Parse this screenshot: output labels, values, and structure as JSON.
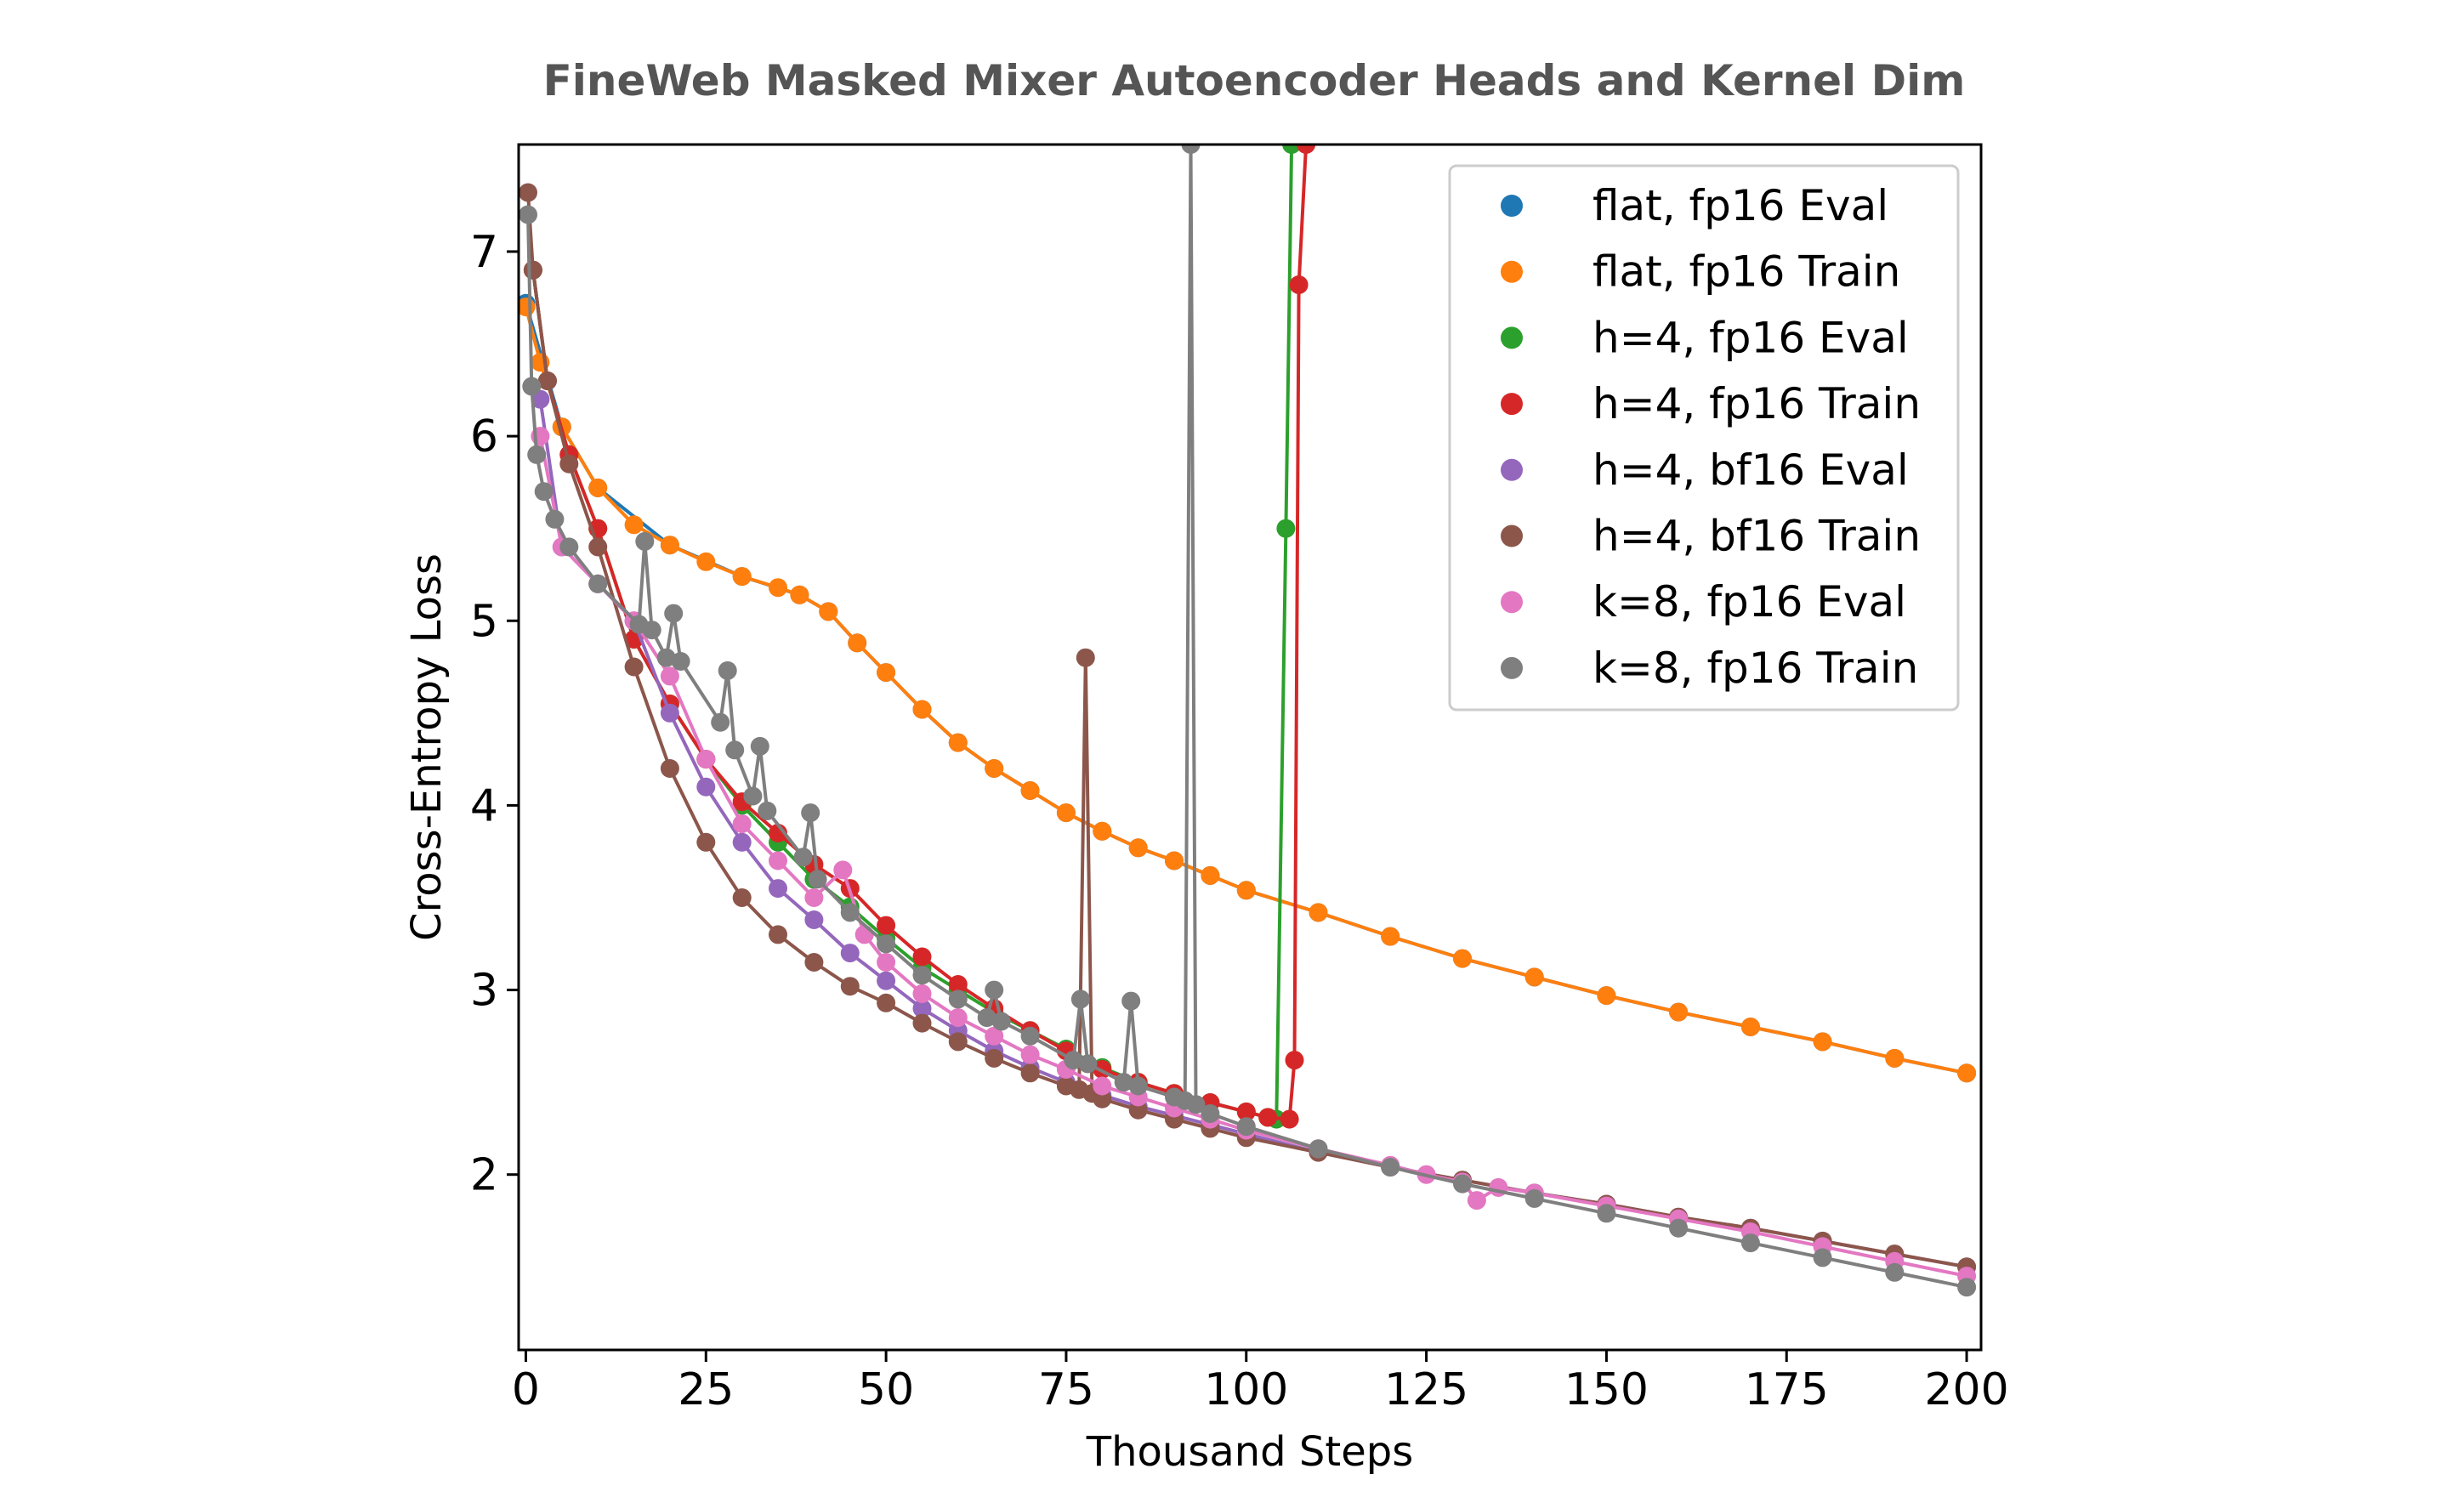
{
  "chart_data": {
    "type": "line",
    "title": "FineWeb Masked Mixer Autoencoder Heads and Kernel Dim",
    "xlabel": "Thousand Steps",
    "ylabel": "Cross-Entropy Loss",
    "xlim": [
      -1,
      202
    ],
    "ylim": [
      1.05,
      7.58
    ],
    "xticks": [
      0,
      25,
      50,
      75,
      100,
      125,
      150,
      175,
      200
    ],
    "yticks": [
      2,
      3,
      4,
      5,
      6,
      7
    ],
    "grid": false,
    "legend_position": "top-right",
    "series": [
      {
        "name": "flat, fp16 Eval",
        "color": "#1f77b4",
        "x": [
          0,
          5,
          10,
          20,
          30,
          38,
          42,
          46,
          50,
          55,
          60,
          65,
          70,
          75,
          80,
          85,
          90,
          95,
          100,
          110,
          120,
          130,
          140,
          150,
          160,
          170,
          180,
          190,
          200
        ],
        "y": [
          6.72,
          6.05,
          5.72,
          5.41,
          5.24,
          5.14,
          5.05,
          4.88,
          4.72,
          4.52,
          4.34,
          4.2,
          4.08,
          3.96,
          3.86,
          3.77,
          3.7,
          3.62,
          3.54,
          3.42,
          3.29,
          3.17,
          3.07,
          2.97,
          2.88,
          2.8,
          2.72,
          2.63,
          2.55
        ]
      },
      {
        "name": "flat, fp16 Train",
        "color": "#ff7f0e",
        "x": [
          0,
          2,
          5,
          10,
          15,
          20,
          25,
          30,
          35,
          38,
          42,
          46,
          50,
          55,
          60,
          65,
          70,
          75,
          80,
          85,
          90,
          95,
          100,
          110,
          120,
          130,
          140,
          150,
          160,
          170,
          180,
          190,
          200
        ],
        "y": [
          6.7,
          6.4,
          6.05,
          5.72,
          5.52,
          5.41,
          5.32,
          5.24,
          5.18,
          5.14,
          5.05,
          4.88,
          4.72,
          4.52,
          4.34,
          4.2,
          4.08,
          3.96,
          3.86,
          3.77,
          3.7,
          3.62,
          3.54,
          3.42,
          3.29,
          3.17,
          3.07,
          2.97,
          2.88,
          2.8,
          2.72,
          2.63,
          2.55
        ]
      },
      {
        "name": "h=4, fp16 Eval",
        "color": "#2ca02c",
        "x": [
          1,
          3,
          6,
          10,
          15,
          20,
          25,
          30,
          35,
          40,
          45,
          50,
          55,
          60,
          65,
          70,
          75,
          80,
          85,
          90,
          95,
          100,
          103,
          104.2,
          105.5,
          106.3
        ],
        "y": [
          6.9,
          6.3,
          5.9,
          5.5,
          4.9,
          4.55,
          4.25,
          4.0,
          3.8,
          3.6,
          3.45,
          3.28,
          3.12,
          3.0,
          2.88,
          2.78,
          2.68,
          2.58,
          2.5,
          2.44,
          2.39,
          2.34,
          2.31,
          2.3,
          5.5,
          7.58
        ]
      },
      {
        "name": "h=4, fp16 Train",
        "color": "#d62728",
        "x": [
          1,
          3,
          6,
          10,
          15,
          20,
          25,
          30,
          35,
          40,
          45,
          50,
          55,
          60,
          65,
          70,
          75,
          80,
          85,
          90,
          95,
          100,
          103,
          106,
          106.7,
          107.3,
          108.3
        ],
        "y": [
          6.9,
          6.3,
          5.9,
          5.5,
          4.9,
          4.55,
          4.25,
          4.02,
          3.85,
          3.68,
          3.55,
          3.35,
          3.18,
          3.03,
          2.9,
          2.78,
          2.67,
          2.57,
          2.5,
          2.44,
          2.39,
          2.34,
          2.31,
          2.3,
          2.62,
          6.82,
          7.58
        ]
      },
      {
        "name": "h=4, bf16 Eval",
        "color": "#9467bd",
        "x": [
          2,
          5,
          10,
          15,
          20,
          25,
          30,
          35,
          40,
          45,
          50,
          55,
          60,
          65,
          70,
          75,
          80,
          85,
          90,
          95,
          100,
          110,
          120,
          130,
          140,
          150,
          160,
          170,
          180,
          190,
          200
        ],
        "y": [
          6.2,
          5.4,
          5.2,
          5.0,
          4.5,
          4.1,
          3.8,
          3.55,
          3.38,
          3.2,
          3.05,
          2.9,
          2.78,
          2.67,
          2.58,
          2.5,
          2.43,
          2.37,
          2.32,
          2.27,
          2.22,
          2.12,
          2.04,
          1.97,
          1.9,
          1.84,
          1.77,
          1.71,
          1.64,
          1.57,
          1.5
        ]
      },
      {
        "name": "h=4, bf16 Train",
        "color": "#8c564b",
        "x": [
          0.3,
          1,
          3,
          6,
          10,
          15,
          20,
          25,
          30,
          35,
          40,
          45,
          50,
          55,
          60,
          65,
          70,
          75,
          76.8,
          77.7,
          78.6,
          80,
          85,
          90,
          95,
          100,
          110,
          120,
          130,
          140,
          150,
          160,
          170,
          180,
          190,
          200
        ],
        "y": [
          7.32,
          6.9,
          6.3,
          5.85,
          5.4,
          4.75,
          4.2,
          3.8,
          3.5,
          3.3,
          3.15,
          3.02,
          2.93,
          2.82,
          2.72,
          2.63,
          2.55,
          2.48,
          2.46,
          4.8,
          2.44,
          2.41,
          2.35,
          2.3,
          2.25,
          2.2,
          2.12,
          2.04,
          1.97,
          1.9,
          1.84,
          1.77,
          1.71,
          1.64,
          1.57,
          1.5
        ]
      },
      {
        "name": "k=8, fp16 Eval",
        "color": "#e377c2",
        "x": [
          2,
          5,
          10,
          15,
          20,
          25,
          30,
          35,
          40,
          44,
          47,
          50,
          55,
          60,
          65,
          70,
          75,
          80,
          85,
          90,
          95,
          100,
          110,
          120,
          125,
          130,
          132,
          135,
          140,
          150,
          160,
          170,
          180,
          190,
          200
        ],
        "y": [
          6.0,
          5.4,
          5.2,
          5.0,
          4.7,
          4.25,
          3.9,
          3.7,
          3.5,
          3.65,
          3.3,
          3.15,
          2.98,
          2.85,
          2.75,
          2.65,
          2.57,
          2.48,
          2.42,
          2.36,
          2.3,
          2.24,
          2.14,
          2.05,
          2.0,
          1.96,
          1.86,
          1.93,
          1.9,
          1.83,
          1.76,
          1.69,
          1.61,
          1.53,
          1.45
        ]
      },
      {
        "name": "k=8, fp16 Train",
        "color": "#7f7f7f",
        "x": [
          0.3,
          0.8,
          1.5,
          2.5,
          4,
          6,
          10,
          15.7,
          16.5,
          17.5,
          19.5,
          20.5,
          21.5,
          27,
          28,
          29,
          31.5,
          32.5,
          33.5,
          38.5,
          39.5,
          40.5,
          45,
          50,
          55,
          60,
          64,
          65,
          66,
          70,
          76,
          77,
          78,
          83,
          84,
          85,
          90,
          91.5,
          92.3,
          93,
          95,
          100,
          110,
          120,
          130,
          140,
          150,
          160,
          170,
          180,
          190,
          200
        ],
        "y": [
          7.2,
          6.27,
          5.9,
          5.7,
          5.55,
          5.4,
          5.2,
          4.98,
          5.43,
          4.95,
          4.8,
          5.04,
          4.78,
          4.45,
          4.73,
          4.3,
          4.05,
          4.32,
          3.97,
          3.72,
          3.96,
          3.6,
          3.42,
          3.25,
          3.08,
          2.95,
          2.85,
          3.0,
          2.83,
          2.75,
          2.62,
          2.95,
          2.6,
          2.5,
          2.94,
          2.48,
          2.42,
          2.4,
          7.58,
          2.38,
          2.33,
          2.26,
          2.14,
          2.04,
          1.95,
          1.87,
          1.79,
          1.71,
          1.63,
          1.55,
          1.47,
          1.39
        ]
      }
    ]
  }
}
